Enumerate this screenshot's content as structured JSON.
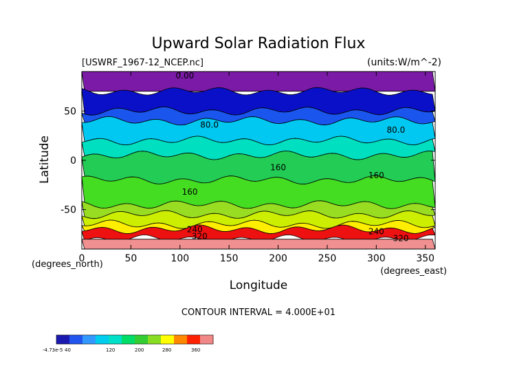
{
  "chart_data": {
    "type": "heatmap",
    "title": "Upward Solar Radiation Flux",
    "file_label": "[USWRF_1967-12_NCEP.nc]",
    "units_label": "(units:W/m^-2)",
    "xlabel": "Longitude",
    "ylabel": "Latitude",
    "x_unit_label": "(degrees_east)",
    "y_unit_label": "(degrees_north)",
    "xlim": [
      0,
      360
    ],
    "ylim": [
      -90,
      90
    ],
    "x_ticks": [
      0,
      50,
      100,
      150,
      200,
      250,
      300,
      350
    ],
    "y_ticks": [
      50,
      0,
      -50
    ],
    "contour_interval_text": "CONTOUR INTERVAL = 4.000E+01",
    "contour_labels": [
      "0.00",
      "80.0",
      "80.0",
      "160",
      "160",
      "160",
      "240",
      "240",
      "320",
      "320"
    ],
    "colorbar": {
      "tick_labels": [
        "-4.73e-5",
        "40",
        "120",
        "200",
        "280",
        "360"
      ],
      "colors": [
        "#1a1ab0",
        "#2255ee",
        "#3399ff",
        "#00ccee",
        "#00e0c8",
        "#00dd66",
        "#33cc33",
        "#88dd22",
        "#ffff00",
        "#ff8800",
        "#ff2200",
        "#f08888"
      ]
    },
    "zonal_bands": [
      {
        "lat_top": 90,
        "lat_bottom": 70,
        "value": 0,
        "color": "#7a1aa6"
      },
      {
        "lat_top": 70,
        "lat_bottom": 50,
        "value": 20,
        "color": "#0a10c8"
      },
      {
        "lat_top": 50,
        "lat_bottom": 40,
        "value": 60,
        "color": "#1a55ee"
      },
      {
        "lat_top": 40,
        "lat_bottom": 20,
        "value": 80,
        "color": "#00c8f0"
      },
      {
        "lat_top": 20,
        "lat_bottom": 5,
        "value": 110,
        "color": "#00e0c0"
      },
      {
        "lat_top": 5,
        "lat_bottom": -20,
        "value": 140,
        "color": "#22cc55"
      },
      {
        "lat_top": -20,
        "lat_bottom": -45,
        "value": 170,
        "color": "#44dd22"
      },
      {
        "lat_top": -45,
        "lat_bottom": -55,
        "value": 190,
        "color": "#99dd22"
      },
      {
        "lat_top": -55,
        "lat_bottom": -65,
        "value": 230,
        "color": "#ccee00"
      },
      {
        "lat_top": -65,
        "lat_bottom": -70,
        "value": 270,
        "color": "#ffee00"
      },
      {
        "lat_top": -70,
        "lat_bottom": -80,
        "value": 330,
        "color": "#ee1111"
      },
      {
        "lat_top": -80,
        "lat_bottom": -90,
        "value": 370,
        "color": "#f09090"
      }
    ]
  }
}
